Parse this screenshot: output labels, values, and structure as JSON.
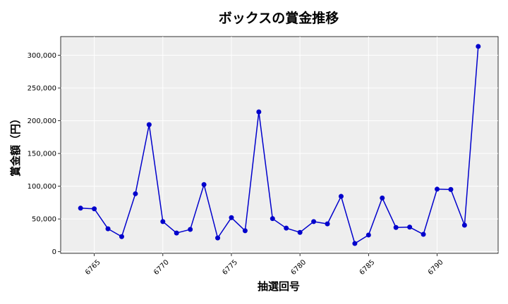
{
  "chart_data": {
    "type": "line",
    "title": "ボックスの賞金推移",
    "xlabel": "抽選回号",
    "ylabel": "賞金額（円）",
    "x": [
      6764,
      6765,
      6766,
      6767,
      6768,
      6769,
      6770,
      6771,
      6772,
      6773,
      6774,
      6775,
      6776,
      6777,
      6778,
      6779,
      6780,
      6781,
      6782,
      6783,
      6784,
      6785,
      6786,
      6787,
      6788,
      6789,
      6790,
      6791,
      6792,
      6793
    ],
    "series": [
      {
        "values": [
          66500,
          65500,
          35000,
          23000,
          88500,
          194000,
          46000,
          28500,
          34000,
          102500,
          21000,
          52000,
          32000,
          213500,
          50500,
          36000,
          29500,
          46000,
          42500,
          84500,
          12500,
          25500,
          82000,
          37000,
          37500,
          26500,
          95500,
          95000,
          40500,
          313500
        ],
        "color": "#0000cc"
      }
    ],
    "xticks": [
      6765,
      6770,
      6775,
      6780,
      6785,
      6790
    ],
    "yticks": [
      0,
      50000,
      100000,
      150000,
      200000,
      250000,
      300000
    ],
    "ytick_labels": [
      "0",
      "50,000",
      "100,000",
      "150,000",
      "200,000",
      "250,000",
      "300,000"
    ],
    "xlim": [
      6762.55,
      6794.45
    ],
    "ylim": [
      -2500,
      328500
    ],
    "grid": true,
    "background": "#eeeeee"
  }
}
